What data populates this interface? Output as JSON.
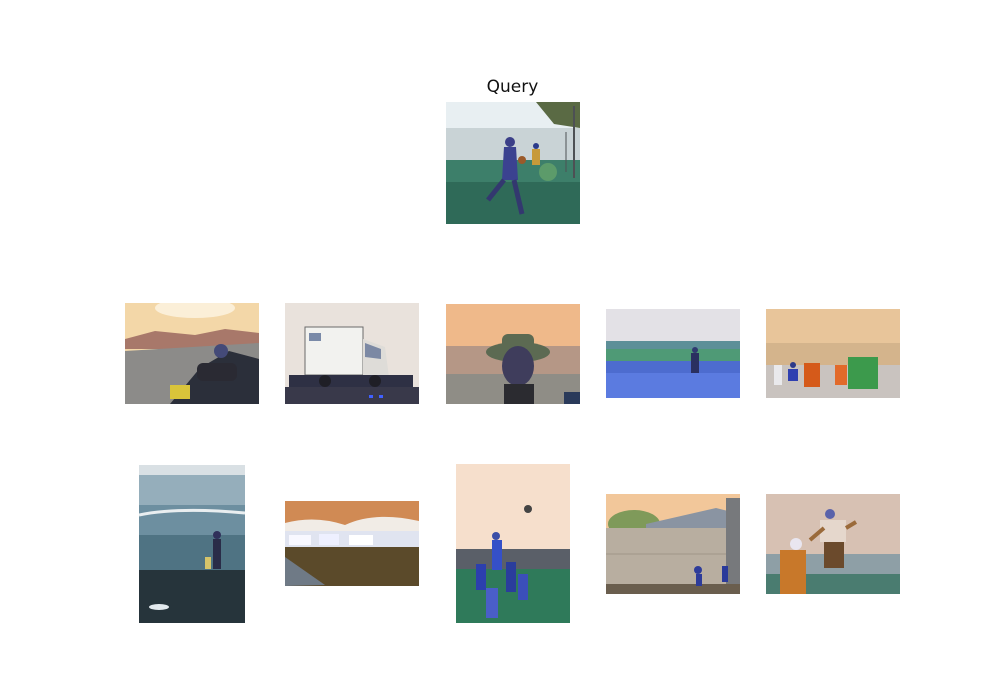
{
  "query": {
    "title": "Query",
    "image": {
      "subject": "person-running-on-grass-by-beach-photo"
    }
  },
  "results": [
    {
      "subject": "person-resting-on-sand-dune-photo"
    },
    {
      "subject": "damaged-ambulance-on-flatbed-truck-photo"
    },
    {
      "subject": "selfie-person-in-bucket-hat-photo"
    },
    {
      "subject": "person-walking-through-meadow-photo"
    },
    {
      "subject": "child-near-beach-chairs-photo"
    },
    {
      "subject": "person-on-rocky-shore-with-waves-photo"
    },
    {
      "subject": "waterfront-town-under-cloudy-sky-photo"
    },
    {
      "subject": "rugby-lineout-jump-photo"
    },
    {
      "subject": "greenhouse-building-construction-photo"
    },
    {
      "subject": "adult-lifting-child-in-air-photo"
    }
  ]
}
